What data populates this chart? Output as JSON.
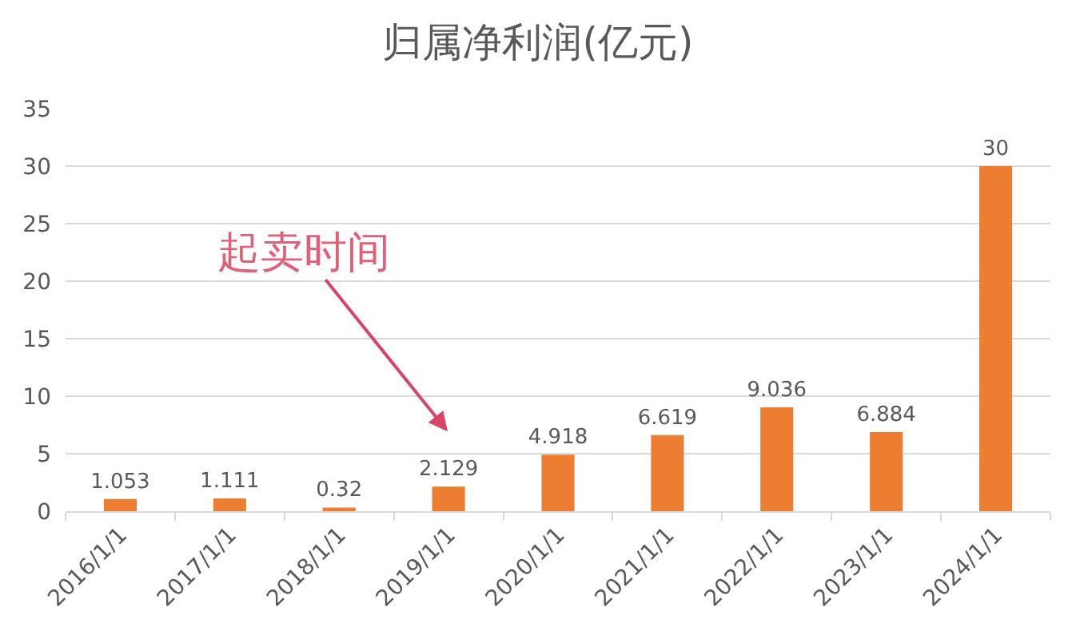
{
  "chart_data": {
    "type": "bar",
    "title": "归属净利润(亿元)",
    "categories": [
      "2016/1/1",
      "2017/1/1",
      "2018/1/1",
      "2019/1/1",
      "2020/1/1",
      "2021/1/1",
      "2022/1/1",
      "2023/1/1",
      "2024/1/1"
    ],
    "values": [
      1.053,
      1.111,
      0.32,
      2.129,
      4.918,
      6.619,
      9.036,
      6.884,
      30
    ],
    "color": "#ed7d31",
    "ylim": [
      0,
      35
    ],
    "yticks": [
      0,
      5,
      10,
      15,
      20,
      25,
      30,
      35
    ],
    "grid": "y",
    "data_labels": true,
    "annotations": [
      "起卖时间"
    ]
  }
}
